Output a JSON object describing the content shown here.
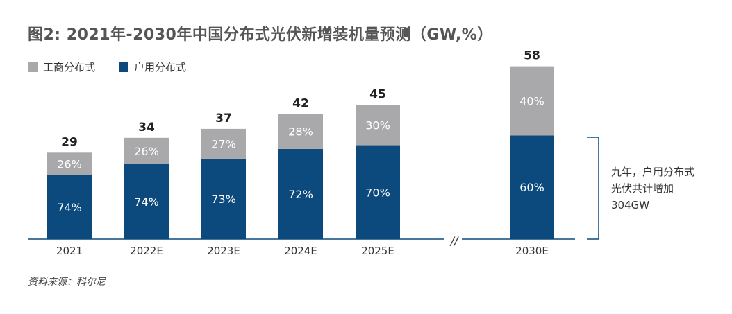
{
  "title": "图2: 2021年-2030年中国分布式光伏新增装机量预测（GW,%）",
  "legend": [
    {
      "label": "工商分布式",
      "color": "#a9a9ab"
    },
    {
      "label": "户用分布式",
      "color": "#0c4a7e"
    }
  ],
  "chart_data": {
    "type": "bar",
    "stacked": true,
    "categories": [
      "2021",
      "2022E",
      "2023E",
      "2024E",
      "2025E",
      "2030E"
    ],
    "totals": [
      29,
      34,
      37,
      42,
      45,
      58
    ],
    "series": [
      {
        "name": "户用分布式",
        "color": "#0c4a7e",
        "share_labels": [
          "74%",
          "74%",
          "73%",
          "72%",
          "70%",
          "60%"
        ],
        "share": [
          74,
          74,
          73,
          72,
          70,
          60
        ]
      },
      {
        "name": "工商分布式",
        "color": "#a9a9ab",
        "share_labels": [
          "26%",
          "26%",
          "27%",
          "28%",
          "30%",
          "40%"
        ],
        "share": [
          26,
          26,
          27,
          28,
          30,
          40
        ]
      }
    ],
    "axis_break_label": "//",
    "ylim": [
      0,
      60
    ],
    "grid": false
  },
  "note": "九年，户用分布式光伏共计增加304GW",
  "source": "资料来源：科尔尼"
}
